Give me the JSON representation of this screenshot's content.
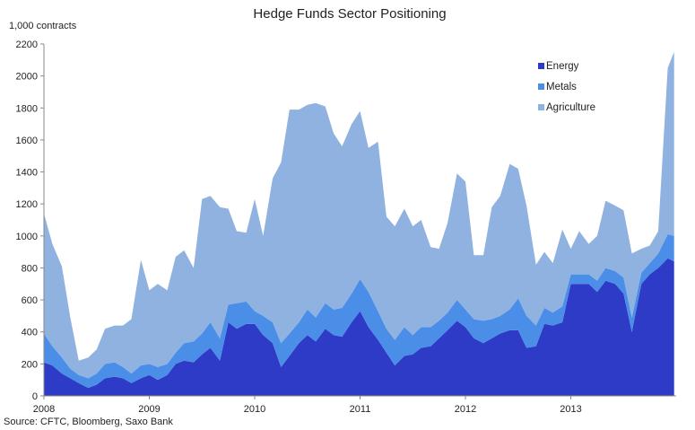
{
  "chart_data": {
    "type": "area",
    "stacked": true,
    "title": "Hedge Funds Sector Positioning",
    "ylabel": "1,000 contracts",
    "xlabel": "",
    "source": "Source: CFTC, Bloomberg, Saxo Bank",
    "ylim": [
      0,
      2200
    ],
    "xlim": [
      2008.0,
      2014.0
    ],
    "yticks": [
      "0",
      "200",
      "400",
      "600",
      "800",
      "1000",
      "1200",
      "1400",
      "1600",
      "1800",
      "2000",
      "2200"
    ],
    "xticks": [
      "2008",
      "2009",
      "2010",
      "2011",
      "2012",
      "2013"
    ],
    "xtick_values": [
      2008,
      2009,
      2010,
      2011,
      2012,
      2013
    ],
    "legend_position": "top-right",
    "grid": false,
    "x": [
      2008.0,
      2008.08,
      2008.17,
      2008.25,
      2008.33,
      2008.42,
      2008.5,
      2008.58,
      2008.67,
      2008.75,
      2008.83,
      2008.92,
      2009.0,
      2009.08,
      2009.17,
      2009.25,
      2009.33,
      2009.42,
      2009.5,
      2009.58,
      2009.67,
      2009.75,
      2009.83,
      2009.92,
      2010.0,
      2010.08,
      2010.17,
      2010.25,
      2010.33,
      2010.42,
      2010.5,
      2010.58,
      2010.67,
      2010.75,
      2010.83,
      2010.92,
      2011.0,
      2011.08,
      2011.17,
      2011.25,
      2011.33,
      2011.42,
      2011.5,
      2011.58,
      2011.67,
      2011.75,
      2011.83,
      2011.92,
      2012.0,
      2012.08,
      2012.17,
      2012.25,
      2012.33,
      2012.42,
      2012.5,
      2012.58,
      2012.67,
      2012.75,
      2012.83,
      2012.92,
      2013.0,
      2013.08,
      2013.17,
      2013.25,
      2013.33,
      2013.42,
      2013.5,
      2013.58,
      2013.67,
      2013.75,
      2013.83,
      2013.92,
      2013.98
    ],
    "series": [
      {
        "name": "Energy",
        "color": "#2e3bc6",
        "values": [
          210,
          190,
          140,
          110,
          80,
          50,
          70,
          110,
          120,
          110,
          80,
          110,
          130,
          100,
          130,
          200,
          220,
          210,
          260,
          300,
          220,
          460,
          420,
          450,
          450,
          380,
          330,
          180,
          250,
          330,
          380,
          340,
          420,
          380,
          370,
          460,
          530,
          430,
          350,
          270,
          190,
          250,
          260,
          300,
          310,
          360,
          410,
          470,
          430,
          360,
          330,
          360,
          390,
          410,
          410,
          300,
          310,
          450,
          440,
          460,
          700,
          700,
          700,
          650,
          720,
          700,
          640,
          400,
          700,
          760,
          800,
          860,
          840
        ]
      },
      {
        "name": "Metals",
        "color": "#4a8ee8",
        "values": [
          180,
          120,
          100,
          60,
          50,
          60,
          70,
          90,
          90,
          70,
          60,
          80,
          70,
          80,
          70,
          70,
          110,
          130,
          130,
          160,
          140,
          110,
          160,
          140,
          80,
          120,
          130,
          150,
          140,
          130,
          160,
          150,
          160,
          160,
          180,
          180,
          200,
          220,
          180,
          150,
          160,
          180,
          120,
          130,
          120,
          110,
          110,
          130,
          110,
          120,
          140,
          120,
          110,
          130,
          200,
          200,
          130,
          100,
          80,
          100,
          60,
          60,
          60,
          70,
          80,
          80,
          100,
          90,
          70,
          70,
          90,
          150,
          160
        ]
      },
      {
        "name": "Agriculture",
        "color": "#8fb2e0",
        "values": [
          750,
          640,
          570,
          320,
          90,
          130,
          150,
          220,
          230,
          260,
          340,
          660,
          460,
          520,
          460,
          600,
          580,
          460,
          840,
          790,
          820,
          600,
          450,
          430,
          700,
          500,
          900,
          1130,
          1400,
          1330,
          1280,
          1340,
          1230,
          1100,
          1010,
          1060,
          1050,
          900,
          1060,
          700,
          710,
          740,
          680,
          670,
          500,
          450,
          560,
          790,
          800,
          400,
          410,
          700,
          750,
          910,
          810,
          690,
          380,
          350,
          310,
          480,
          160,
          270,
          190,
          280,
          420,
          410,
          420,
          400,
          150,
          110,
          140,
          1040,
          1150
        ]
      }
    ]
  }
}
